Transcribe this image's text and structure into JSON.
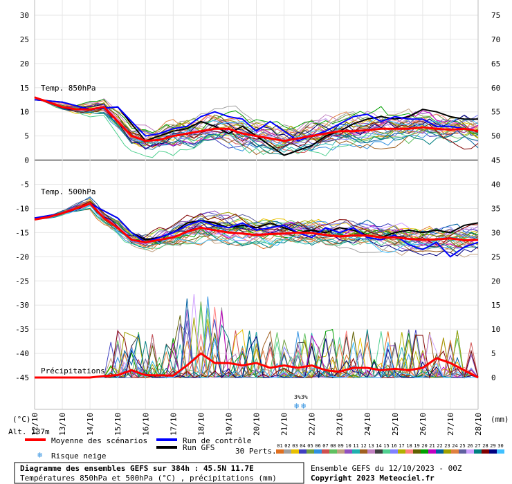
{
  "chart_data": {
    "type": "line",
    "title": "Diagramme des ensembles GEFS sur 384h : 45.5N 11.7E",
    "subtitle": "Températures 850hPa et 500hPa (°C) , précipitations (mm)",
    "run_info": "Ensemble GEFS du 12/10/2023 - 00Z",
    "copyright": "Copyright 2023 Meteociel.fr",
    "left_unit": "(°C)",
    "right_unit": "(mm)",
    "altitude": "Alt. 137m",
    "left_ticks": [
      30,
      25,
      20,
      15,
      10,
      5,
      0,
      -5,
      -10,
      -15,
      -20,
      -25,
      -30,
      -35,
      -40,
      -45
    ],
    "right_ticks": [
      75,
      70,
      65,
      60,
      55,
      50,
      45,
      40,
      35,
      30,
      25,
      20,
      15,
      10,
      5,
      0
    ],
    "ylim": [
      -45,
      30
    ],
    "precip_ylim": [
      0,
      75
    ],
    "dates": [
      "12/10",
      "13/10",
      "14/10",
      "15/10",
      "16/10",
      "17/10",
      "18/10",
      "19/10",
      "20/10",
      "21/10",
      "22/10",
      "23/10",
      "24/10",
      "25/10",
      "26/10",
      "27/10",
      "28/10"
    ],
    "panel_labels": {
      "t850": "Temp. 850hPa",
      "t500": "Temp. 500hPa",
      "precip": "Précipitations"
    },
    "snow_marks": [
      "3%",
      "3%"
    ],
    "legend": {
      "mean": "Moyenne des scénarios",
      "control": "Run de contrôle",
      "gfs": "Run GFS",
      "snow": "Risque neige",
      "perts_label": "30 Perts.",
      "member_numbers": [
        "01",
        "02",
        "03",
        "04",
        "05",
        "06",
        "07",
        "08",
        "09",
        "10",
        "11",
        "12",
        "13",
        "14",
        "15",
        "16",
        "17",
        "18",
        "19",
        "20",
        "21",
        "22",
        "23",
        "24",
        "25",
        "26",
        "27",
        "28",
        "29",
        "30"
      ],
      "member_colors": [
        "#e07020",
        "#a0a0a0",
        "#e8c000",
        "#4040c0",
        "#70a040",
        "#3090e0",
        "#d05050",
        "#60c060",
        "#c0a080",
        "#9050c0",
        "#20b0b0",
        "#a06020",
        "#c080c0",
        "#404040",
        "#50d090",
        "#8080ff",
        "#b0b000",
        "#ff8080",
        "#606000",
        "#00a000",
        "#c000c0",
        "#0060a0",
        "#a0a000",
        "#e08040",
        "#6060a0",
        "#d0a0ff",
        "#008080",
        "#800000",
        "#000080",
        "#40c0ff"
      ]
    },
    "colors": {
      "mean": "#ff0000",
      "control": "#0000ff",
      "gfs": "#000000"
    },
    "series": [
      {
        "name": "Moyenne des scénarios",
        "level": "850hPa",
        "x": [
          0,
          0.5,
          1,
          1.5,
          2,
          2.5,
          3,
          3.5,
          4,
          4.5,
          5,
          5.5,
          6,
          6.5,
          7,
          7.5,
          8,
          8.5,
          9,
          9.5,
          10,
          10.5,
          11,
          11.5,
          12,
          12.5,
          13,
          13.5,
          14,
          14.5,
          15,
          15.5,
          16
        ],
        "y": [
          13,
          12,
          11,
          10.5,
          10.5,
          11,
          8,
          5,
          4,
          4.2,
          5,
          5.5,
          6,
          6.5,
          6.5,
          5.5,
          5,
          4.5,
          4,
          4.5,
          5,
          5.5,
          6,
          6,
          6.2,
          6.5,
          6.5,
          6.5,
          6.8,
          6.5,
          6.3,
          6.5,
          6
        ]
      },
      {
        "name": "Moyenne des scénarios",
        "level": "500hPa",
        "x": [
          0,
          0.5,
          1,
          1.5,
          2,
          2.5,
          3,
          3.5,
          4,
          4.5,
          5,
          5.5,
          6,
          6.5,
          7,
          7.5,
          8,
          8.5,
          9,
          9.5,
          10,
          10.5,
          11,
          11.5,
          12,
          12.5,
          13,
          13.5,
          14,
          14.5,
          15,
          15.5,
          16
        ],
        "y": [
          -12.3,
          -11.8,
          -11,
          -10,
          -9,
          -12,
          -14,
          -16.5,
          -17,
          -16.5,
          -16,
          -14.8,
          -14,
          -14.5,
          -15,
          -15.2,
          -15.5,
          -15.3,
          -15.2,
          -15,
          -15.1,
          -15.5,
          -15.8,
          -15.6,
          -15.6,
          -16,
          -16,
          -16.3,
          -16.5,
          -16.4,
          -16.2,
          -16.6,
          -16.5
        ]
      },
      {
        "name": "Moyenne des scénarios",
        "level": "precip",
        "x": [
          0,
          1,
          2,
          2.5,
          3,
          3.5,
          4,
          5,
          5.5,
          6,
          6.5,
          7,
          7.5,
          8,
          8.5,
          9,
          9.5,
          10,
          10.5,
          11,
          11.5,
          12,
          12.5,
          13,
          13.5,
          14,
          14.5,
          15,
          15.5,
          16
        ],
        "y": [
          0,
          0,
          0,
          0.3,
          0.5,
          1.5,
          0.5,
          0.4,
          2.5,
          5,
          3,
          3,
          2.5,
          3,
          2,
          2.5,
          2,
          2.5,
          1.5,
          1.2,
          2,
          2,
          1.5,
          1.8,
          1.5,
          2,
          4,
          3,
          1.5,
          0
        ]
      },
      {
        "name": "Run de contrôle",
        "level": "850hPa",
        "x": [
          0,
          1,
          2,
          3,
          3.5,
          4,
          4.5,
          5,
          5.5,
          6,
          6.5,
          7,
          7.5,
          8,
          8.5,
          9,
          9.5,
          10,
          10.5,
          11,
          11.5,
          12,
          12.5,
          13,
          13.5,
          14,
          14.5,
          15,
          15.5,
          16
        ],
        "y": [
          12.5,
          12,
          10.5,
          11,
          8,
          5,
          5.5,
          6.5,
          7,
          9,
          10,
          9,
          8.5,
          6,
          8,
          6,
          4,
          5,
          6,
          7.5,
          9,
          9.5,
          8,
          9,
          8.5,
          8.5,
          7,
          7,
          6.5,
          6
        ]
      },
      {
        "name": "Run de contrôle",
        "level": "500hPa",
        "x": [
          0,
          1,
          2,
          3,
          3.5,
          4,
          4.5,
          5,
          5.5,
          6,
          6.5,
          7,
          7.5,
          8,
          8.5,
          9,
          9.5,
          10,
          10.5,
          11,
          11.5,
          12,
          12.5,
          13,
          13.5,
          14,
          14.5,
          15,
          15.5,
          16
        ],
        "y": [
          -12,
          -11,
          -9,
          -12,
          -15,
          -17,
          -16,
          -15,
          -13.5,
          -12.5,
          -13.5,
          -14,
          -13,
          -14.5,
          -14,
          -13.5,
          -15,
          -16,
          -14,
          -15,
          -14,
          -16,
          -16.5,
          -15.5,
          -17.5,
          -18.5,
          -17,
          -20,
          -18,
          -17
        ]
      },
      {
        "name": "Run GFS",
        "level": "850hPa",
        "x": [
          0,
          1,
          2,
          3,
          3.5,
          4,
          4.5,
          5,
          5.5,
          6,
          6.5,
          7,
          7.5,
          8,
          8.5,
          9,
          9.5,
          10,
          10.5,
          11,
          11.5,
          12,
          12.5,
          13,
          13.5,
          14,
          14.5,
          15,
          15.5,
          16
        ],
        "y": [
          12.5,
          12,
          10.5,
          11,
          7.5,
          4,
          5,
          6,
          6.5,
          8,
          7,
          5.5,
          7,
          5,
          3,
          1,
          2,
          3,
          5,
          6,
          7.5,
          8.5,
          9,
          8.5,
          9,
          10.5,
          10,
          9,
          8.5,
          8.5
        ]
      },
      {
        "name": "Run GFS",
        "level": "500hPa",
        "x": [
          0,
          1,
          2,
          3,
          3.5,
          4,
          4.5,
          5,
          5.5,
          6,
          6.5,
          7,
          7.5,
          8,
          8.5,
          9,
          9.5,
          10,
          10.5,
          11,
          11.5,
          12,
          12.5,
          13,
          13.5,
          14,
          14.5,
          15,
          15.5,
          16
        ],
        "y": [
          -12,
          -11,
          -9,
          -12,
          -15,
          -16.5,
          -16,
          -15,
          -13,
          -12.5,
          -13,
          -14,
          -13.5,
          -14,
          -13,
          -14,
          -15,
          -14.5,
          -15,
          -14,
          -14.5,
          -15.5,
          -16,
          -15,
          -14.5,
          -15,
          -14.5,
          -15,
          -13.5,
          -13
        ]
      }
    ]
  }
}
